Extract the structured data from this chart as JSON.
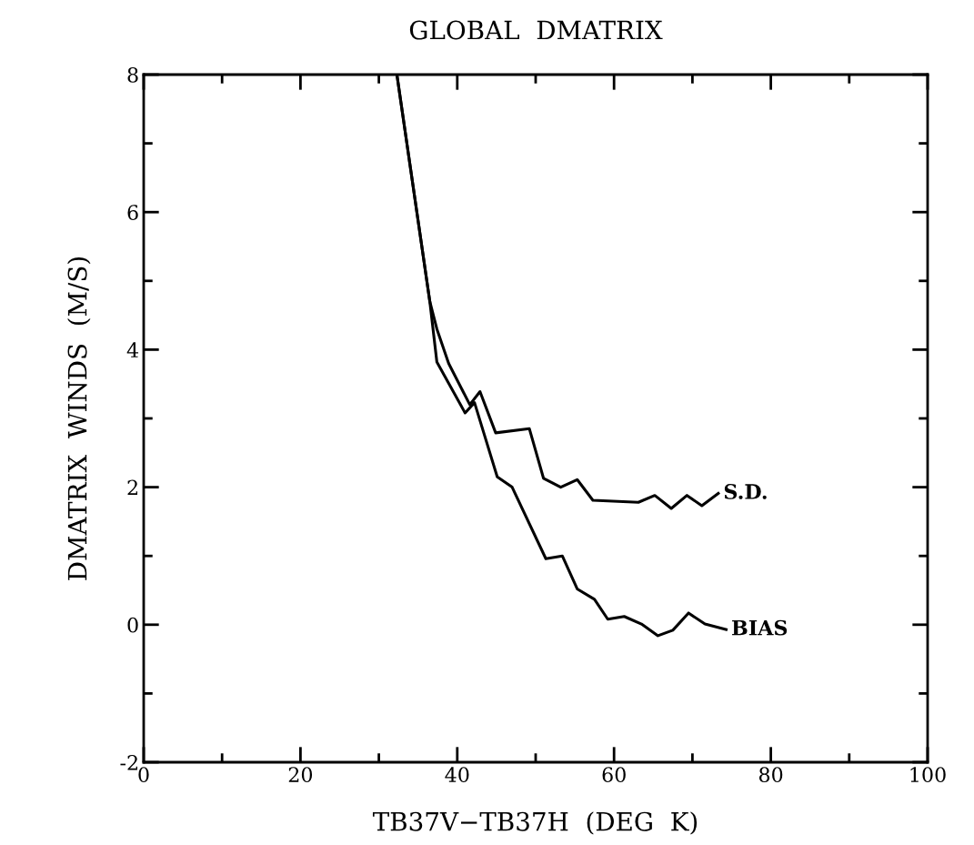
{
  "chart_data": {
    "type": "line",
    "title": "GLOBAL  DMATRIX",
    "xlabel": "TB37V−TB37H  (DEG  K)",
    "ylabel": "DMATRIX  WINDS  (M/S)",
    "xlim": [
      0,
      100
    ],
    "ylim": [
      -2,
      8
    ],
    "xticks": [
      0,
      20,
      40,
      60,
      80,
      100
    ],
    "yticks": [
      -2,
      0,
      2,
      4,
      6,
      8
    ],
    "grid": false,
    "legend": false,
    "marker": "none",
    "line_style": "solid",
    "series": [
      {
        "name": "S.D.",
        "color": "#000000",
        "x": [
          32.3,
          36.5,
          37.4,
          38.9,
          41.6,
          42.9,
          44.9,
          49.2,
          51.0,
          53.2,
          55.3,
          57.3,
          63.1,
          65.2,
          67.3,
          69.3,
          71.2,
          73.3
        ],
        "values": [
          8,
          4.7,
          4.3,
          3.8,
          3.2,
          3.39,
          2.79,
          2.85,
          2.13,
          2.0,
          2.11,
          1.81,
          1.78,
          1.88,
          1.69,
          1.88,
          1.73,
          1.91
        ]
      },
      {
        "name": "BIAS",
        "color": "#000000",
        "x": [
          32.3,
          36.5,
          37.4,
          41.0,
          42.2,
          45.1,
          47.0,
          51.3,
          53.4,
          55.3,
          57.5,
          59.2,
          61.3,
          63.5,
          65.6,
          67.5,
          69.5,
          71.6,
          74.3
        ],
        "values": [
          8,
          4.7,
          3.82,
          3.08,
          3.23,
          2.15,
          2.0,
          0.96,
          1.0,
          0.52,
          0.37,
          0.08,
          0.12,
          0.01,
          -0.16,
          -0.08,
          0.17,
          0.01,
          -0.07
        ]
      }
    ]
  }
}
